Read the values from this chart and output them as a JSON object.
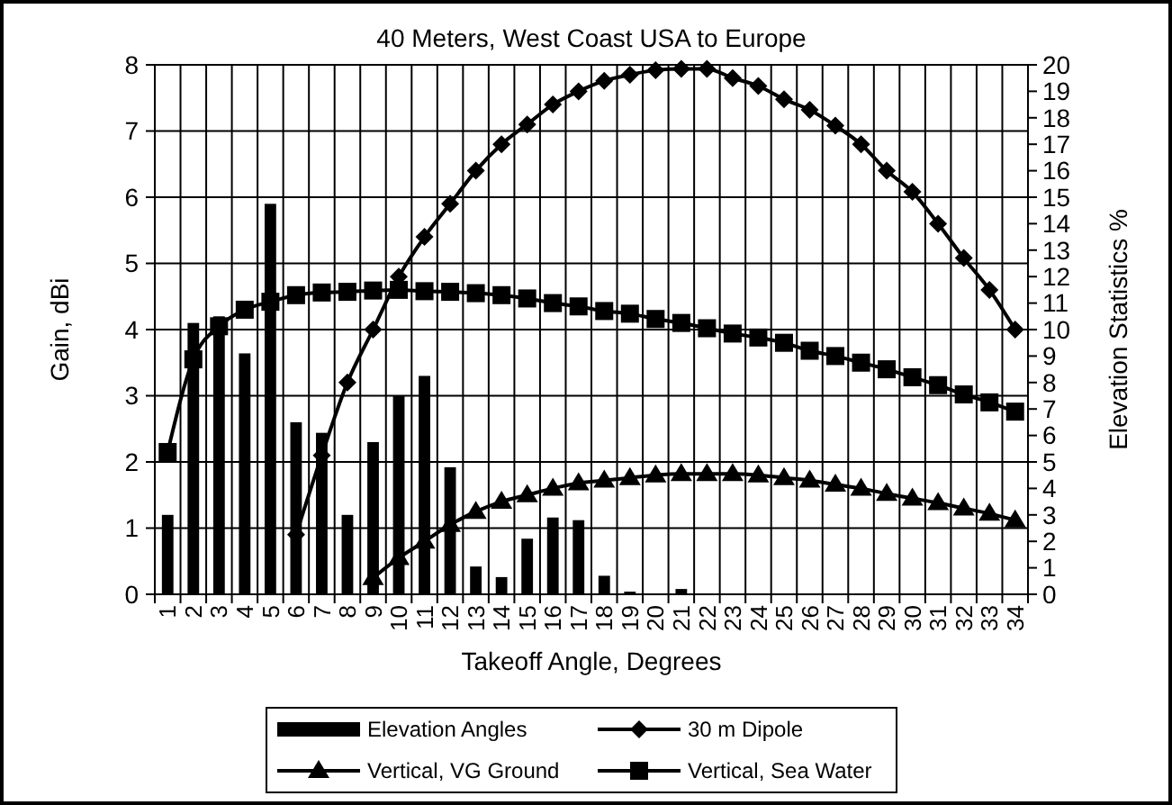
{
  "chart_data": {
    "type": "bar",
    "title": "40 Meters, West Coast USA to Europe",
    "xlabel": "Takeoff Angle, Degrees",
    "ylabel": "Gain, dBi",
    "y2label": "Elevation Statistics %",
    "categories": [
      "1",
      "2",
      "3",
      "4",
      "5",
      "6",
      "7",
      "8",
      "9",
      "10",
      "11",
      "12",
      "13",
      "14",
      "15",
      "16",
      "17",
      "18",
      "19",
      "20",
      "21",
      "22",
      "23",
      "24",
      "25",
      "26",
      "27",
      "28",
      "29",
      "30",
      "31",
      "32",
      "33",
      "34"
    ],
    "series": [
      {
        "name": "Elevation Angles",
        "axis": "y2",
        "color": "#000000",
        "values": [
          3.0,
          10.25,
          10.5,
          9.1,
          14.75,
          6.5,
          6.1,
          3.0,
          5.75,
          7.5,
          8.25,
          4.8,
          1.05,
          0.65,
          2.1,
          2.9,
          2.8,
          0.7,
          0.1,
          0,
          0.2,
          0,
          0,
          0,
          0,
          0,
          0,
          0,
          0,
          0,
          0,
          0,
          0,
          0
        ]
      },
      {
        "name": "30 m Dipole",
        "type": "line",
        "marker": "diamond",
        "color": "#000000",
        "values": [
          null,
          null,
          null,
          null,
          null,
          0.9,
          2.1,
          3.2,
          4.0,
          4.8,
          5.4,
          5.9,
          6.4,
          6.8,
          7.1,
          7.4,
          7.6,
          7.76,
          7.85,
          7.92,
          7.94,
          7.94,
          7.8,
          7.68,
          7.48,
          7.32,
          7.08,
          6.8,
          6.4,
          6.08,
          5.6,
          5.08,
          4.6,
          4.0
        ]
      },
      {
        "name": "Vertical, VG Ground",
        "type": "line",
        "marker": "triangle",
        "color": "#000000",
        "values": [
          null,
          null,
          null,
          null,
          null,
          null,
          null,
          null,
          0.25,
          0.55,
          0.8,
          1.05,
          1.25,
          1.4,
          1.5,
          1.6,
          1.68,
          1.72,
          1.76,
          1.8,
          1.82,
          1.82,
          1.82,
          1.8,
          1.76,
          1.72,
          1.66,
          1.6,
          1.52,
          1.45,
          1.38,
          1.3,
          1.22,
          1.12
        ]
      },
      {
        "name": "Vertical, Sea Water",
        "type": "line",
        "marker": "square",
        "color": "#000000",
        "values": [
          2.15,
          3.55,
          4.05,
          4.3,
          4.42,
          4.52,
          4.56,
          4.57,
          4.59,
          4.6,
          4.58,
          4.57,
          4.55,
          4.52,
          4.47,
          4.4,
          4.35,
          4.28,
          4.24,
          4.16,
          4.1,
          4.02,
          3.94,
          3.88,
          3.8,
          3.68,
          3.6,
          3.5,
          3.4,
          3.28,
          3.16,
          3.02,
          2.9,
          2.76
        ]
      }
    ],
    "ylim": [
      0,
      8
    ],
    "yticks": [
      0,
      1,
      2,
      3,
      4,
      5,
      6,
      7,
      8
    ],
    "y2lim": [
      0,
      20
    ],
    "y2ticks": [
      0,
      1,
      2,
      3,
      4,
      5,
      6,
      7,
      8,
      9,
      10,
      11,
      12,
      13,
      14,
      15,
      16,
      17,
      18,
      19,
      20
    ],
    "grid": true,
    "legend": "bottom"
  }
}
